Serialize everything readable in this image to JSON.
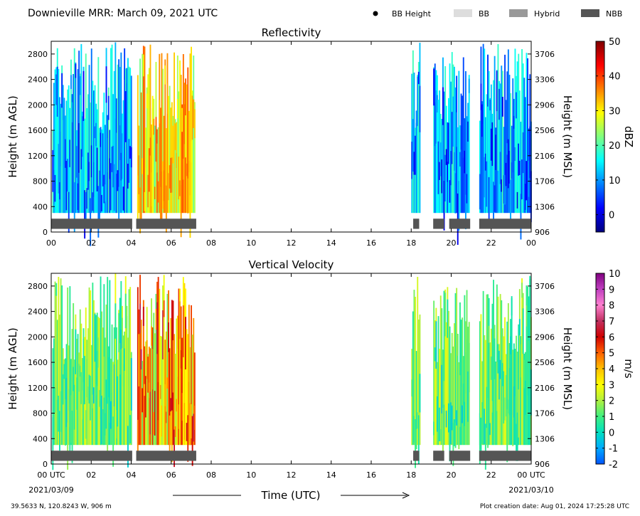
{
  "header": {
    "title": "Downieville MRR:  March 09, 2021 UTC",
    "legend": [
      {
        "label": "BB Height",
        "icon": "dot",
        "color": "#000000"
      },
      {
        "label": "BB",
        "icon": "swatch",
        "color": "#dddddd"
      },
      {
        "label": "Hybrid",
        "icon": "swatch",
        "color": "#999999"
      },
      {
        "label": "NBB",
        "icon": "swatch",
        "color": "#555555"
      }
    ]
  },
  "chart_data": [
    {
      "type": "heatmap",
      "title": "Reflectivity",
      "ylabel": "Height (m AGL)",
      "ylabel_right": "Height (m MSL)",
      "yticks": [
        "0",
        "400",
        "800",
        "1200",
        "1600",
        "2000",
        "2400",
        "2800"
      ],
      "yticks_right": [
        "906",
        "1306",
        "1706",
        "2106",
        "2506",
        "2906",
        "3306",
        "3706"
      ],
      "ylim": [
        0,
        3000
      ],
      "xticks": [
        "00",
        "02",
        "04",
        "06",
        "08",
        "10",
        "12",
        "14",
        "16",
        "18",
        "20",
        "22",
        "00"
      ],
      "xlim_hours": [
        0,
        24
      ],
      "colorbar": {
        "label": "dBZ",
        "min": -5,
        "max": 50,
        "ticks": [
          "0",
          "10",
          "20",
          "30",
          "40",
          "50"
        ],
        "colors": [
          "#00007f",
          "#0000ff",
          "#0080ff",
          "#00ffff",
          "#80ff80",
          "#ffff00",
          "#ff8000",
          "#ff0000",
          "#7f0000"
        ]
      },
      "echo_segments_hours": [
        [
          0.05,
          4.0
        ],
        [
          4.3,
          7.2
        ],
        [
          18.0,
          18.45
        ],
        [
          19.1,
          20.9
        ],
        [
          21.4,
          24.0
        ]
      ],
      "classification_segments_hours": [
        {
          "start": 0.0,
          "end": 4.05,
          "class": "NBB"
        },
        {
          "start": 4.25,
          "end": 7.25,
          "class": "NBB"
        },
        {
          "start": 18.1,
          "end": 18.4,
          "class": "NBB"
        },
        {
          "start": 19.1,
          "end": 19.65,
          "class": "NBB"
        },
        {
          "start": 19.9,
          "end": 20.95,
          "class": "NBB"
        },
        {
          "start": 21.4,
          "end": 24.0,
          "class": "NBB"
        }
      ]
    },
    {
      "type": "heatmap",
      "title": "Vertical Velocity",
      "ylabel": "Height (m AGL)",
      "ylabel_right": "Height (m MSL)",
      "yticks": [
        "0",
        "400",
        "800",
        "1200",
        "1600",
        "2000",
        "2400",
        "2800"
      ],
      "yticks_right": [
        "906",
        "1306",
        "1706",
        "2106",
        "2506",
        "2906",
        "3306",
        "3706"
      ],
      "ylim": [
        0,
        3000
      ],
      "xticks": [
        "00 UTC",
        "02",
        "04",
        "06",
        "08",
        "10",
        "12",
        "14",
        "16",
        "18",
        "20",
        "22",
        "00 UTC"
      ],
      "xlim_hours": [
        0,
        24
      ],
      "colorbar": {
        "label": "m/s",
        "min": -2,
        "max": 10,
        "ticks": [
          "-2",
          "-1",
          "0",
          "1",
          "2",
          "3",
          "4",
          "5",
          "6",
          "7",
          "8",
          "9",
          "10"
        ],
        "colors": [
          "#0055ff",
          "#00aaff",
          "#00e0c0",
          "#40f080",
          "#b0f040",
          "#ffff00",
          "#ffc000",
          "#ff6000",
          "#d00000",
          "#c03060",
          "#ff80d0",
          "#c040c0",
          "#800080"
        ]
      },
      "echo_segments_hours": [
        [
          0.05,
          4.0
        ],
        [
          4.3,
          7.2
        ],
        [
          18.0,
          18.45
        ],
        [
          19.1,
          20.9
        ],
        [
          21.4,
          24.0
        ]
      ],
      "classification_segments_hours": [
        {
          "start": 0.0,
          "end": 4.05,
          "class": "NBB"
        },
        {
          "start": 4.25,
          "end": 7.25,
          "class": "NBB"
        },
        {
          "start": 18.1,
          "end": 18.4,
          "class": "NBB"
        },
        {
          "start": 19.1,
          "end": 19.65,
          "class": "NBB"
        },
        {
          "start": 19.9,
          "end": 20.95,
          "class": "NBB"
        },
        {
          "start": 21.4,
          "end": 24.0,
          "class": "NBB"
        }
      ]
    }
  ],
  "footer": {
    "start_date": "2021/03/09",
    "end_date": "2021/03/10",
    "xlabel": "Time (UTC)",
    "location": "39.5633 N, 120.8243 W, 906 m",
    "creation": "Plot creation date: Aug 01, 2024 17:25:28 UTC"
  }
}
